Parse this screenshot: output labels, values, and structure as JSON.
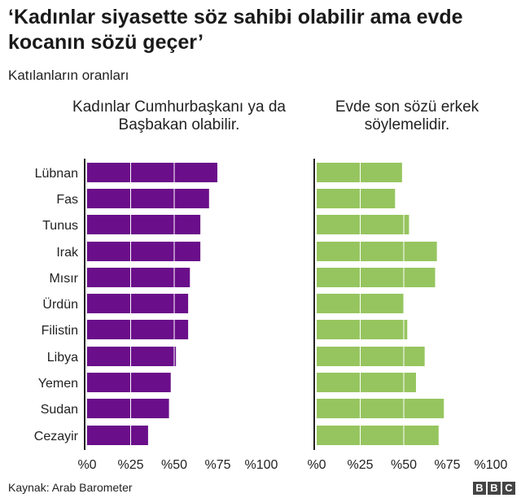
{
  "chart_data": {
    "type": "bar",
    "orientation": "horizontal",
    "title": "‘Kadınlar siyasette söz sahibi olabilir ama evde kocanın sözü geçer’",
    "subtitle": "Katılanların oranları",
    "source": "Kaynak: Arab Barometer",
    "categories": [
      "Lübnan",
      "Fas",
      "Tunus",
      "Irak",
      "Mısır",
      "Ürdün",
      "Filistin",
      "Libya",
      "Yemen",
      "Sudan",
      "Cezayir"
    ],
    "xlim": [
      0,
      100
    ],
    "ticks": [
      0,
      25,
      50,
      75,
      100
    ],
    "tick_labels": [
      "%0",
      "%25",
      "%50",
      "%75",
      "%100"
    ],
    "grid": "vertical white lines over bars",
    "series": [
      {
        "name": "Kadınlar Cumhurbaşkanı ya da Başbakan olabilir.",
        "color": "#6a0e8a",
        "values": [
          75,
          70,
          65,
          65,
          59,
          58,
          58,
          51,
          48,
          47,
          35
        ]
      },
      {
        "name": "Evde son sözü erkek söylemelidir.",
        "color": "#96c55f",
        "values": [
          49,
          45,
          53,
          69,
          68,
          50,
          52,
          62,
          57,
          73,
          70
        ]
      }
    ]
  },
  "brand": {
    "letters": [
      "B",
      "B",
      "C"
    ]
  }
}
